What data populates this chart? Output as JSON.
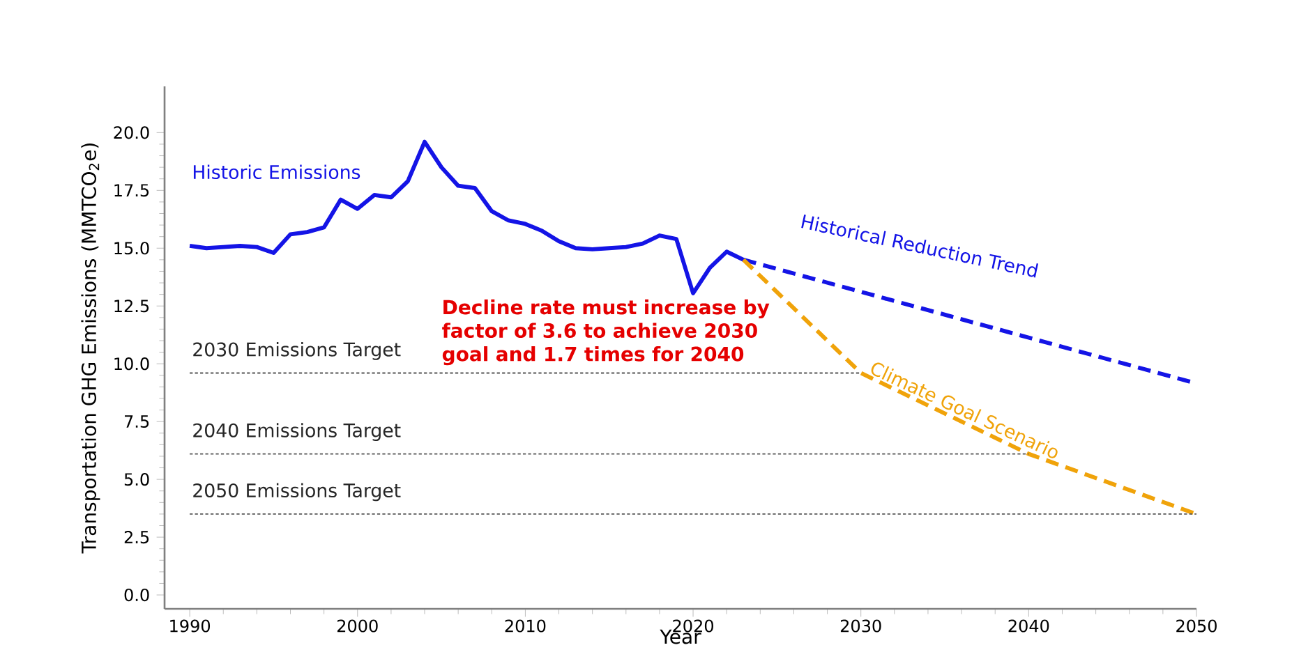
{
  "chart_data": {
    "type": "line",
    "xlabel": "Year",
    "ylabel": "Transportation GHG Emissions (MMTCO$_{2}$e)",
    "xlim": [
      1988.5,
      2050
    ],
    "ylim": [
      -0.6,
      22
    ],
    "xticks": [
      1990,
      2000,
      2010,
      2020,
      2030,
      2040,
      2050
    ],
    "yticks": [
      {
        "value": 0,
        "label": "0.0"
      },
      {
        "value": 2.5,
        "label": "2.5"
      },
      {
        "value": 5,
        "label": "5.0"
      },
      {
        "value": 7.5,
        "label": "7.5"
      },
      {
        "value": 10,
        "label": "10.0"
      },
      {
        "value": 12.5,
        "label": "12.5"
      },
      {
        "value": 15,
        "label": "15.0"
      },
      {
        "value": 17.5,
        "label": "17.5"
      },
      {
        "value": 20,
        "label": "20.0"
      }
    ],
    "series": [
      {
        "name": "Historic Emissions",
        "color": "#1414e6",
        "line_style": "solid",
        "x": [
          1990,
          1991,
          1992,
          1993,
          1994,
          1995,
          1996,
          1997,
          1998,
          1999,
          2000,
          2001,
          2002,
          2003,
          2004,
          2005,
          2006,
          2007,
          2008,
          2009,
          2010,
          2011,
          2012,
          2013,
          2014,
          2015,
          2016,
          2017,
          2018,
          2019,
          2020,
          2021,
          2022,
          2023
        ],
        "values": [
          15.1,
          15.0,
          15.05,
          15.1,
          15.05,
          14.8,
          15.6,
          15.7,
          15.9,
          17.1,
          16.7,
          17.3,
          17.2,
          17.9,
          19.6,
          18.5,
          17.7,
          17.6,
          16.6,
          16.2,
          16.05,
          15.75,
          15.3,
          15.0,
          14.95,
          15.0,
          15.05,
          15.2,
          15.55,
          15.4,
          13.05,
          14.15,
          14.85,
          14.5
        ]
      },
      {
        "name": "Historical Reduction Trend",
        "color": "#1414e6",
        "line_style": "dashed",
        "x": [
          2023,
          2050
        ],
        "values": [
          14.5,
          9.15
        ]
      },
      {
        "name": "Climate Goal Scenario",
        "color": "#f0a30a",
        "line_style": "dashed",
        "x": [
          2023,
          2030,
          2040,
          2050
        ],
        "values": [
          14.5,
          9.6,
          6.1,
          3.5
        ]
      },
      {
        "name": "2030 Emissions Target",
        "color": "#555555",
        "line_style": "dotted",
        "x": [
          1990,
          2030
        ],
        "values": [
          9.6,
          9.6
        ]
      },
      {
        "name": "2040 Emissions Target",
        "color": "#555555",
        "line_style": "dotted",
        "x": [
          1990,
          2040
        ],
        "values": [
          6.1,
          6.1
        ]
      },
      {
        "name": "2050 Emissions Target",
        "color": "#555555",
        "line_style": "dotted",
        "x": [
          1990,
          2050
        ],
        "values": [
          3.5,
          3.5
        ]
      }
    ],
    "annotations": [
      "Decline rate must increase by factor of 3.6 to achieve 2030 goal and 1.7 times for 2040"
    ]
  }
}
